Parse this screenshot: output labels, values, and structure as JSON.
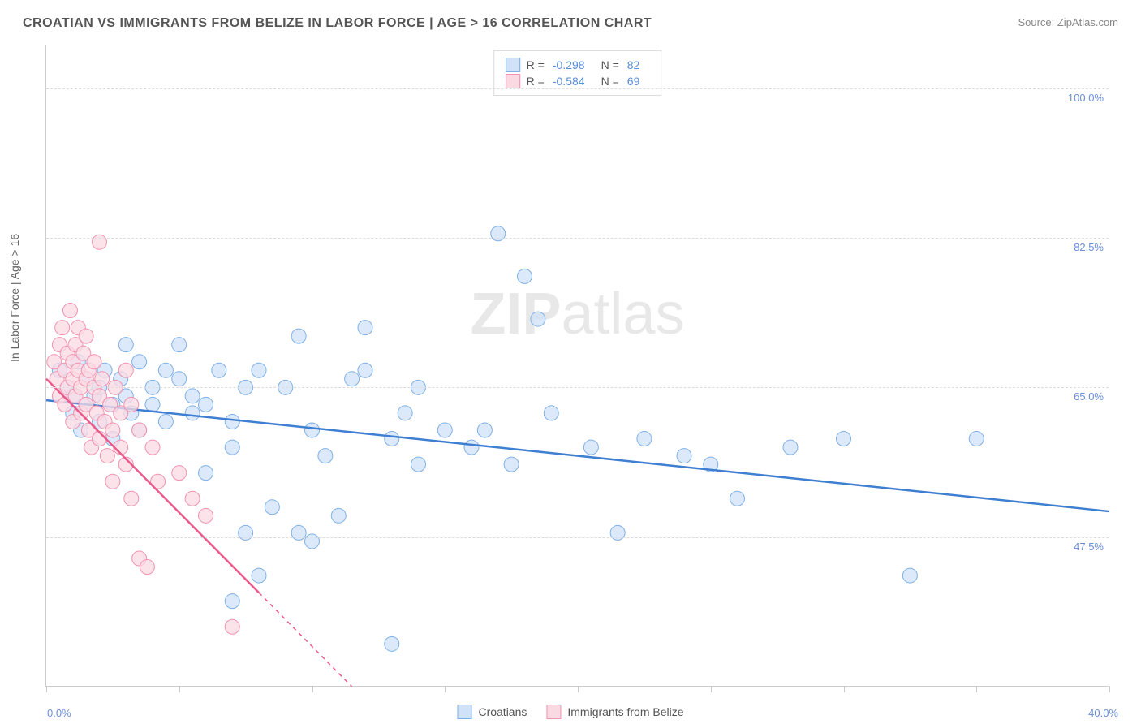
{
  "title": "CROATIAN VS IMMIGRANTS FROM BELIZE IN LABOR FORCE | AGE > 16 CORRELATION CHART",
  "source": "Source: ZipAtlas.com",
  "watermark_bold": "ZIP",
  "watermark_rest": "atlas",
  "y_axis_title": "In Labor Force | Age > 16",
  "chart": {
    "type": "scatter",
    "xlim": [
      0,
      40
    ],
    "ylim": [
      30,
      105
    ],
    "y_gridlines": [
      47.5,
      65.0,
      82.5,
      100.0
    ],
    "y_tick_labels": [
      "47.5%",
      "65.0%",
      "82.5%",
      "100.0%"
    ],
    "x_ticks": [
      0,
      5,
      10,
      15,
      20,
      25,
      30,
      35,
      40
    ],
    "x_label_min": "0.0%",
    "x_label_max": "40.0%",
    "background_color": "#ffffff",
    "grid_color": "#dddddd",
    "axis_color": "#cccccc",
    "label_color": "#6a8fd8",
    "series": [
      {
        "name": "Croatians",
        "marker_fill": "#cfe2f8",
        "marker_stroke": "#7fb0e6",
        "line_color": "#3f7fd1",
        "r_value": "-0.298",
        "n_value": "82",
        "marker_radius": 9,
        "trend": {
          "x1": 0,
          "y1": 63.5,
          "x2": 40,
          "y2": 50.5
        },
        "points": [
          [
            0.5,
            67
          ],
          [
            0.8,
            65
          ],
          [
            1.0,
            64
          ],
          [
            1.0,
            62
          ],
          [
            1.2,
            68
          ],
          [
            1.3,
            60
          ],
          [
            1.5,
            66
          ],
          [
            1.5,
            63
          ],
          [
            1.8,
            64
          ],
          [
            2.0,
            65
          ],
          [
            2.0,
            61
          ],
          [
            2.2,
            67
          ],
          [
            2.5,
            63
          ],
          [
            2.5,
            59
          ],
          [
            2.8,
            66
          ],
          [
            3.0,
            64
          ],
          [
            3.0,
            70
          ],
          [
            3.2,
            62
          ],
          [
            3.5,
            68
          ],
          [
            3.5,
            60
          ],
          [
            4.0,
            65
          ],
          [
            4.0,
            63
          ],
          [
            4.5,
            67
          ],
          [
            4.5,
            61
          ],
          [
            5.0,
            66
          ],
          [
            5.0,
            70
          ],
          [
            5.5,
            62
          ],
          [
            5.5,
            64
          ],
          [
            6.0,
            63
          ],
          [
            6.0,
            55
          ],
          [
            6.5,
            67
          ],
          [
            7.0,
            58
          ],
          [
            7.0,
            61
          ],
          [
            7.0,
            40
          ],
          [
            7.5,
            48
          ],
          [
            7.5,
            65
          ],
          [
            8.0,
            67
          ],
          [
            8.0,
            43
          ],
          [
            8.5,
            51
          ],
          [
            9.0,
            65
          ],
          [
            9.5,
            71
          ],
          [
            9.5,
            48
          ],
          [
            10.0,
            47
          ],
          [
            10.0,
            60
          ],
          [
            10.5,
            57
          ],
          [
            11.0,
            50
          ],
          [
            11.5,
            66
          ],
          [
            12.0,
            72
          ],
          [
            12.0,
            67
          ],
          [
            13.0,
            35
          ],
          [
            13.0,
            59
          ],
          [
            13.5,
            62
          ],
          [
            14.0,
            65
          ],
          [
            14.0,
            56
          ],
          [
            15.0,
            60
          ],
          [
            16.0,
            58
          ],
          [
            16.5,
            60
          ],
          [
            17.0,
            83
          ],
          [
            17.5,
            56
          ],
          [
            18.0,
            78
          ],
          [
            18.5,
            73
          ],
          [
            19.0,
            62
          ],
          [
            20.5,
            58
          ],
          [
            21.5,
            48
          ],
          [
            22.5,
            59
          ],
          [
            24.0,
            57
          ],
          [
            25.0,
            56
          ],
          [
            26.0,
            52
          ],
          [
            28.0,
            58
          ],
          [
            30.0,
            59
          ],
          [
            32.5,
            43
          ],
          [
            35.0,
            59
          ]
        ]
      },
      {
        "name": "Immigrants from Belize",
        "marker_fill": "#fbd9e3",
        "marker_stroke": "#f092b0",
        "line_color": "#ea5a8c",
        "r_value": "-0.584",
        "n_value": "69",
        "marker_radius": 9,
        "trend": {
          "x1": 0,
          "y1": 66,
          "x2": 8,
          "y2": 41
        },
        "trend_dash": {
          "x1": 8,
          "y1": 41,
          "x2": 11.5,
          "y2": 30
        },
        "points": [
          [
            0.3,
            68
          ],
          [
            0.4,
            66
          ],
          [
            0.5,
            70
          ],
          [
            0.5,
            64
          ],
          [
            0.6,
            72
          ],
          [
            0.7,
            67
          ],
          [
            0.7,
            63
          ],
          [
            0.8,
            69
          ],
          [
            0.8,
            65
          ],
          [
            0.9,
            74
          ],
          [
            1.0,
            66
          ],
          [
            1.0,
            68
          ],
          [
            1.0,
            61
          ],
          [
            1.1,
            70
          ],
          [
            1.1,
            64
          ],
          [
            1.2,
            67
          ],
          [
            1.2,
            72
          ],
          [
            1.3,
            65
          ],
          [
            1.3,
            62
          ],
          [
            1.4,
            69
          ],
          [
            1.5,
            66
          ],
          [
            1.5,
            63
          ],
          [
            1.5,
            71
          ],
          [
            1.6,
            60
          ],
          [
            1.6,
            67
          ],
          [
            1.7,
            58
          ],
          [
            1.8,
            65
          ],
          [
            1.8,
            68
          ],
          [
            1.9,
            62
          ],
          [
            2.0,
            64
          ],
          [
            2.0,
            82
          ],
          [
            2.0,
            59
          ],
          [
            2.1,
            66
          ],
          [
            2.2,
            61
          ],
          [
            2.3,
            57
          ],
          [
            2.4,
            63
          ],
          [
            2.5,
            60
          ],
          [
            2.5,
            54
          ],
          [
            2.6,
            65
          ],
          [
            2.8,
            58
          ],
          [
            2.8,
            62
          ],
          [
            3.0,
            56
          ],
          [
            3.0,
            67
          ],
          [
            3.2,
            52
          ],
          [
            3.2,
            63
          ],
          [
            3.5,
            60
          ],
          [
            3.5,
            45
          ],
          [
            3.8,
            44
          ],
          [
            4.0,
            58
          ],
          [
            4.2,
            54
          ],
          [
            5.0,
            55
          ],
          [
            5.5,
            52
          ],
          [
            6.0,
            50
          ],
          [
            7.0,
            37
          ]
        ]
      }
    ]
  },
  "legend_bottom": {
    "items": [
      {
        "label": "Croatians",
        "fill": "#cfe2f8",
        "stroke": "#7fb0e6"
      },
      {
        "label": "Immigrants from Belize",
        "fill": "#fbd9e3",
        "stroke": "#f092b0"
      }
    ]
  }
}
